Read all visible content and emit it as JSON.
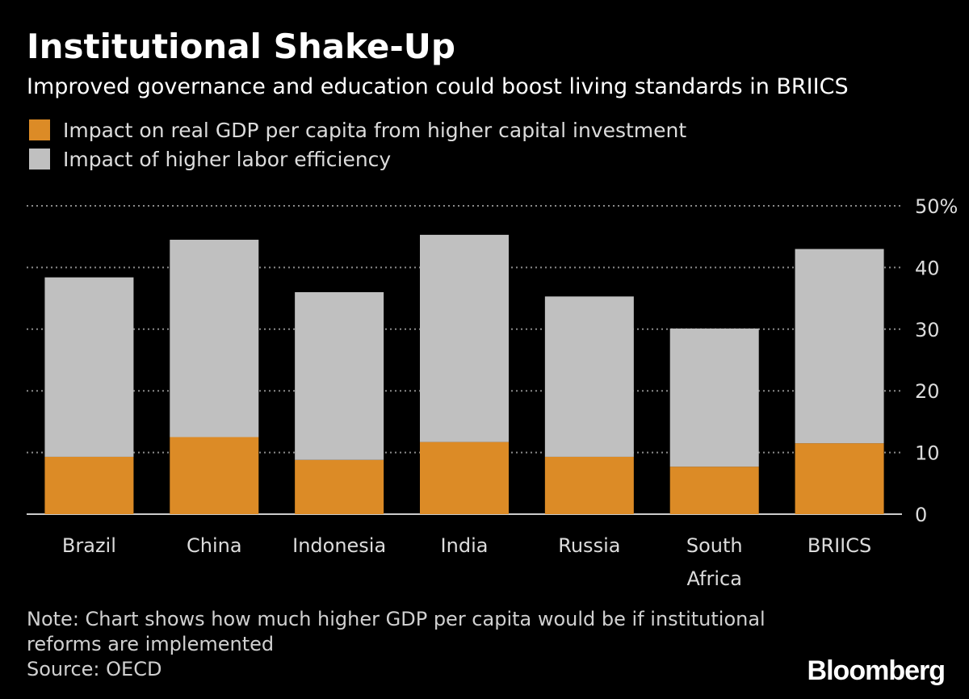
{
  "header": {
    "title": "Institutional Shake-Up",
    "subtitle": "Improved governance and education could boost living standards in BRIICS"
  },
  "colors": {
    "capital": "#dc8b26",
    "labor": "#c0c0c0",
    "background": "#000000",
    "grid": "#8a8a8a"
  },
  "chart_data": {
    "type": "bar",
    "stacked": true,
    "title": "Institutional Shake-Up",
    "subtitle": "Improved governance and education could boost living standards in BRIICS",
    "categories": [
      "Brazil",
      "China",
      "Indonesia",
      "India",
      "Russia",
      "South Africa",
      "BRIICS"
    ],
    "category_lines": [
      [
        "Brazil"
      ],
      [
        "China"
      ],
      [
        "Indonesia"
      ],
      [
        "India"
      ],
      [
        "Russia"
      ],
      [
        "South",
        "Africa"
      ],
      [
        "BRIICS"
      ]
    ],
    "series": [
      {
        "name": "Impact on real GDP per capita from higher capital investment",
        "color": "#dc8b26",
        "values": [
          9.3,
          12.5,
          8.8,
          11.7,
          9.3,
          7.7,
          11.5
        ]
      },
      {
        "name": "Impact of higher labor efficiency",
        "color": "#c0c0c0",
        "values": [
          29.1,
          32.0,
          27.2,
          33.6,
          26.0,
          22.4,
          31.5
        ]
      }
    ],
    "yticks": [
      0,
      10,
      20,
      30,
      40,
      50
    ],
    "ytick_labels": [
      "0",
      "10",
      "20",
      "30",
      "40",
      "50%"
    ],
    "ylim": [
      0,
      50
    ],
    "xlabel": "",
    "ylabel": "",
    "grid": true,
    "legend_position": "top-left",
    "yaxis_position": "right"
  },
  "footer": {
    "note_line1": "Note: Chart shows how much higher GDP per capita would be if institutional",
    "note_line2": "reforms are implemented",
    "source": "Source: OECD",
    "brand": "Bloomberg"
  }
}
